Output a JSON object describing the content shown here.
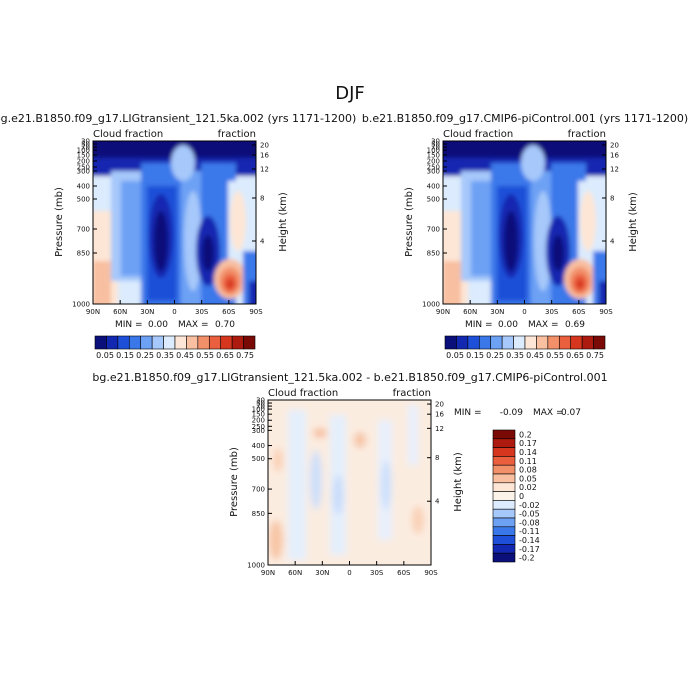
{
  "page_title": "DJF",
  "panels": [
    {
      "title": "bg.e21.B1850.f09_g17.LIGtransient_121.5ka.002 (yrs 1171-1200)",
      "left_label": "Cloud fraction",
      "right_label": "fraction",
      "min_label": "MIN =",
      "min_value": "0.00",
      "max_label": "MAX =",
      "max_value": "0.70"
    },
    {
      "title": "b.e21.B1850.f09_g17.CMIP6-piControl.001 (yrs 1171-1200)",
      "left_label": "Cloud fraction",
      "right_label": "fraction",
      "min_label": "MIN =",
      "min_value": "0.00",
      "max_label": "MAX =",
      "max_value": "0.69"
    },
    {
      "title": "bg.e21.B1850.f09_g17.LIGtransient_121.5ka.002 - b.e21.B1850.f09_g17.CMIP6-piControl.001",
      "left_label": "Cloud fraction",
      "right_label": "fraction",
      "min_label": "MIN =",
      "min_value": "-0.09",
      "max_label": "MAX =",
      "max_value": "0.07"
    }
  ],
  "chart_data": [
    {
      "type": "heatmap",
      "title": "bg.e21.B1850.f09_g17.LIGtransient_121.5ka.002 (yrs 1171-1200)",
      "xlabel": "",
      "ylabel": "Pressure (mb)",
      "y2label": "Height (km)",
      "x_ticks": [
        "90N",
        "60N",
        "30N",
        "0",
        "30S",
        "60S",
        "90S"
      ],
      "y_ticks": [
        "30",
        "50",
        "70",
        "100",
        "150",
        "200",
        "250",
        "300",
        "400",
        "500",
        "700",
        "850",
        "1000"
      ],
      "y2_ticks": [
        "20",
        "16",
        "12",
        "8",
        "4"
      ],
      "value_range": [
        0.0,
        0.7
      ],
      "colorbar_labels": [
        "0.05",
        "0.15",
        "0.25",
        "0.35",
        "0.45",
        "0.55",
        "0.65",
        "0.75"
      ]
    },
    {
      "type": "heatmap",
      "title": "b.e21.B1850.f09_g17.CMIP6-piControl.001 (yrs 1171-1200)",
      "xlabel": "",
      "ylabel": "Pressure (mb)",
      "y2label": "Height (km)",
      "x_ticks": [
        "90N",
        "60N",
        "30N",
        "0",
        "30S",
        "60S",
        "90S"
      ],
      "y_ticks": [
        "30",
        "50",
        "70",
        "100",
        "150",
        "200",
        "250",
        "300",
        "400",
        "500",
        "700",
        "850",
        "1000"
      ],
      "y2_ticks": [
        "20",
        "16",
        "12",
        "8",
        "4"
      ],
      "value_range": [
        0.0,
        0.69
      ],
      "colorbar_labels": [
        "0.05",
        "0.15",
        "0.25",
        "0.35",
        "0.45",
        "0.55",
        "0.65",
        "0.75"
      ]
    },
    {
      "type": "heatmap",
      "title": "bg.e21.B1850.f09_g17.LIGtransient_121.5ka.002 - b.e21.B1850.f09_g17.CMIP6-piControl.001",
      "xlabel": "",
      "ylabel": "Pressure (mb)",
      "y2label": "Height (km)",
      "x_ticks": [
        "90N",
        "60N",
        "30N",
        "0",
        "30S",
        "60S",
        "90S"
      ],
      "y_ticks": [
        "30",
        "50",
        "70",
        "100",
        "150",
        "200",
        "250",
        "300",
        "400",
        "500",
        "700",
        "850",
        "1000"
      ],
      "y2_ticks": [
        "20",
        "16",
        "12",
        "8",
        "4"
      ],
      "value_range": [
        -0.09,
        0.07
      ],
      "colorbar_labels": [
        "0.2",
        "0.17",
        "0.14",
        "0.11",
        "0.08",
        "0.05",
        "0.02",
        "0",
        "-0.02",
        "-0.05",
        "-0.08",
        "-0.11",
        "-0.14",
        "-0.17",
        "-0.2"
      ]
    }
  ],
  "colors": {
    "abs_scale": [
      "#0a0f7a",
      "#1228b0",
      "#1e4fd8",
      "#3a78ea",
      "#6da1f4",
      "#a6c8fa",
      "#dcebfd",
      "#fde6d6",
      "#f8bfa0",
      "#f2906a",
      "#ea5f3e",
      "#d6361e",
      "#ad1a0f",
      "#7a0a05"
    ],
    "diff_scale": [
      "#7a0a05",
      "#ad1a0f",
      "#d6361e",
      "#ea5f3e",
      "#f2906a",
      "#f8bfa0",
      "#fde6d6",
      "#fbf2ea",
      "#dcebfd",
      "#a6c8fa",
      "#6da1f4",
      "#3a78ea",
      "#1e4fd8",
      "#1228b0",
      "#0a0f7a"
    ]
  }
}
